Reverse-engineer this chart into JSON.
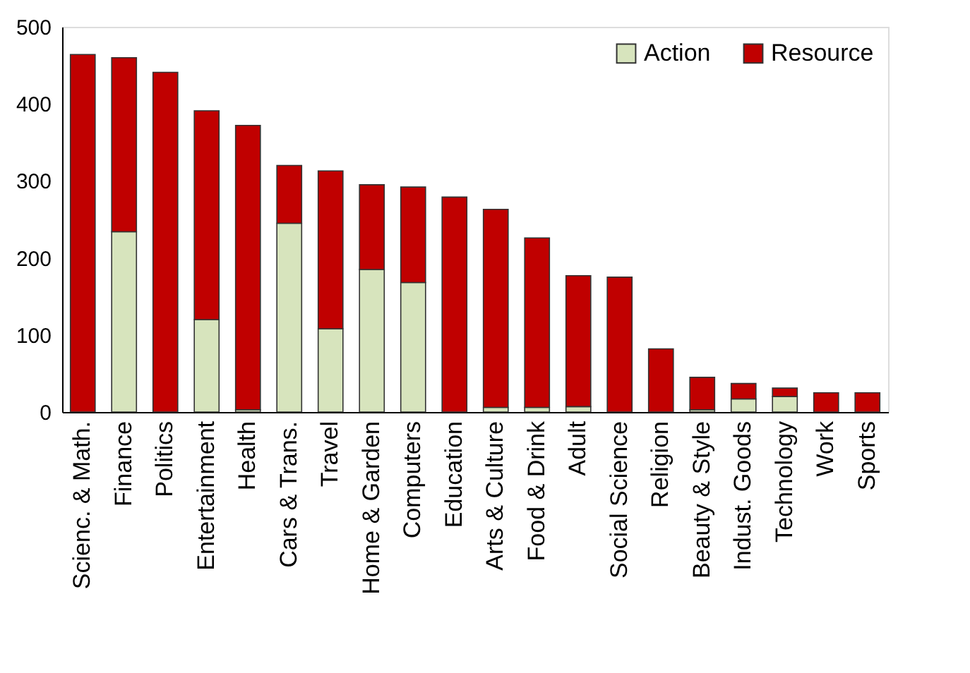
{
  "chart_data": {
    "type": "bar",
    "stacked": true,
    "categories": [
      "Scienc. & Math.",
      "Finance",
      "Politics",
      "Entertainment",
      "Health",
      "Cars & Trans.",
      "Travel",
      "Home & Garden",
      "Computers",
      "Education",
      "Arts & Culture",
      "Food & Drink",
      "Adult",
      "Social Science",
      "Religion",
      "Beauty & Style",
      "Indust. Goods",
      "Technology",
      "Work",
      "Sports"
    ],
    "series": [
      {
        "name": "Action",
        "color": "#d7e4bd",
        "values": [
          null,
          234,
          0,
          120,
          3,
          245,
          108,
          185,
          168,
          0,
          6,
          6,
          7,
          null,
          0,
          3,
          17,
          20,
          null,
          0
        ]
      },
      {
        "name": "Resource",
        "color": "#c00000",
        "values": [
          464,
          226,
          441,
          271,
          369,
          75,
          205,
          110,
          124,
          279,
          257,
          220,
          170,
          175,
          82,
          42,
          20,
          11,
          25,
          25
        ]
      }
    ],
    "ylim": [
      0,
      500
    ],
    "yticks": [
      0,
      100,
      200,
      300,
      400,
      500
    ],
    "grid": false,
    "legend": "top right"
  }
}
